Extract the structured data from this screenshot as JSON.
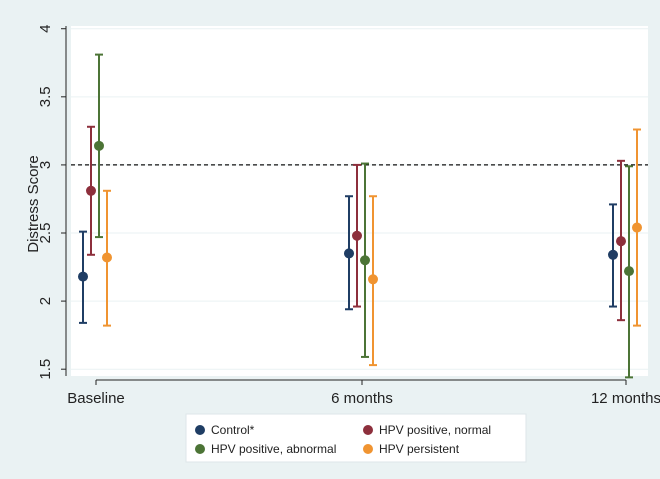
{
  "chart_data": {
    "type": "scatter",
    "subtype": "point-with-error-bars",
    "title": "",
    "xlabel": "",
    "ylabel": "Distress Score",
    "categories": [
      "Baseline",
      "6 months",
      "12 months"
    ],
    "ylim": [
      1.45,
      4.02
    ],
    "yticks": [
      4,
      3.5,
      3,
      2.5,
      2,
      1.5
    ],
    "yticklabels": [
      "4",
      "3.5",
      "3",
      "2.5",
      "2",
      "1.5"
    ],
    "reference_line": {
      "y": 3,
      "style": "dashed"
    },
    "grid": "horizontal",
    "legend_position": "bottom",
    "series": [
      {
        "name": "Control*",
        "color": "#1f3d64",
        "values": [
          2.18,
          2.35,
          2.34
        ],
        "lower": [
          1.84,
          1.94,
          1.96
        ],
        "upper": [
          2.51,
          2.77,
          2.71
        ]
      },
      {
        "name": "HPV positive, normal",
        "color": "#8d2f3c",
        "values": [
          2.81,
          2.48,
          2.44
        ],
        "lower": [
          2.34,
          1.96,
          1.86
        ],
        "upper": [
          3.28,
          3.0,
          3.03
        ]
      },
      {
        "name": "HPV positive, abnormal",
        "color": "#4c7436",
        "values": [
          3.14,
          2.3,
          2.22
        ],
        "lower": [
          2.47,
          1.59,
          1.44
        ],
        "upper": [
          3.81,
          3.01,
          2.99
        ]
      },
      {
        "name": "HPV persistent",
        "color": "#f09431",
        "values": [
          2.32,
          2.16,
          2.54
        ],
        "lower": [
          1.82,
          1.53,
          1.82
        ],
        "upper": [
          2.81,
          2.77,
          3.26
        ]
      }
    ]
  },
  "colors": {
    "outer_background": "#eaf2f3",
    "plot_background": "#ffffff",
    "grid": "#eaf2f3"
  }
}
